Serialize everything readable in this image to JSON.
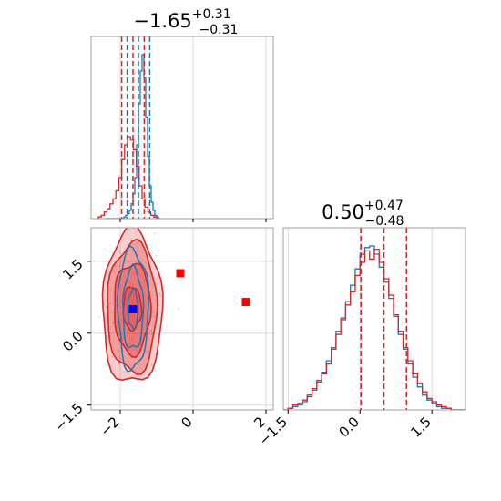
{
  "chart_data": [
    {
      "type": "histogram",
      "panel": "top-left",
      "title": {
        "main": "−1.65",
        "sup": "+0.31",
        "sub": "−0.31"
      },
      "xlim": [
        -2.8,
        2.2
      ],
      "xticks": [
        -2,
        0,
        2
      ],
      "quantile_lines": [
        -1.96,
        -1.65,
        -1.34
      ],
      "series": [
        {
          "color": "#1f77b4",
          "bin_edges_start": -2.4,
          "bin_width": 0.05,
          "counts": [
            0,
            0,
            0,
            0,
            0,
            0,
            0,
            0,
            0,
            0,
            0.01,
            0.02,
            0.03,
            0.05,
            0.09,
            0.15,
            0.25,
            0.45,
            0.7,
            0.9,
            1.0,
            0.86,
            0.62,
            0.38,
            0.2,
            0.1,
            0.05,
            0.02,
            0.01,
            0
          ]
        },
        {
          "color": "#d62728",
          "bin_edges_start": -2.6,
          "bin_width": 0.08,
          "counts": [
            0.01,
            0.02,
            0.04,
            0.06,
            0.09,
            0.12,
            0.17,
            0.25,
            0.36,
            0.45,
            0.5,
            0.48,
            0.42,
            0.32,
            0.2,
            0.12,
            0.07,
            0.04,
            0.02,
            0.01
          ]
        }
      ]
    },
    {
      "type": "contour",
      "panel": "bottom-left",
      "xlim": [
        -2.8,
        2.2
      ],
      "ylim": [
        -1.6,
        2.2
      ],
      "xticks": [
        -2,
        0,
        2
      ],
      "yticks": [
        -1.5,
        0.0,
        1.5
      ],
      "contours": [
        {
          "color": "#d62728",
          "center": [
            -1.67,
            0.52
          ],
          "levels_rx": [
            0.25,
            0.5,
            0.68,
            0.82
          ],
          "levels_ry": [
            0.45,
            0.95,
            1.35,
            1.6
          ],
          "fill": "#e34a4a"
        },
        {
          "color": "#1f77b4",
          "center": [
            -1.65,
            0.5
          ],
          "levels_rx": [
            0.14,
            0.28,
            0.42
          ],
          "levels_ry": [
            0.4,
            0.85,
            1.25
          ],
          "fill": "none"
        }
      ],
      "points": [
        {
          "x": -1.65,
          "y": 0.5,
          "color": "#0000ff",
          "marker": "square"
        },
        {
          "x": -0.35,
          "y": 1.25,
          "color": "#ff0000",
          "marker": "square"
        },
        {
          "x": 1.45,
          "y": 0.65,
          "color": "#ff0000",
          "marker": "square"
        }
      ]
    },
    {
      "type": "histogram",
      "panel": "bottom-right",
      "title": {
        "main": "0.50",
        "sup": "+0.47",
        "sub": "−0.48"
      },
      "xlim": [
        -1.6,
        2.2
      ],
      "xticks": [
        -1.5,
        0.0,
        1.5
      ],
      "quantile_lines": [
        0.02,
        0.5,
        0.97
      ],
      "series": [
        {
          "color": "#1f77b4",
          "bin_edges_start": -1.6,
          "bin_width": 0.1,
          "counts": [
            0.0,
            0.01,
            0.02,
            0.03,
            0.05,
            0.08,
            0.12,
            0.17,
            0.23,
            0.3,
            0.38,
            0.48,
            0.56,
            0.66,
            0.76,
            0.86,
            0.95,
            0.99,
            1.0,
            0.95,
            0.87,
            0.78,
            0.68,
            0.57,
            0.46,
            0.37,
            0.28,
            0.2,
            0.14,
            0.09,
            0.06,
            0.04,
            0.02,
            0.01,
            0.01,
            0.0,
            0.0,
            0.0
          ]
        },
        {
          "color": "#d62728",
          "bin_edges_start": -1.6,
          "bin_width": 0.1,
          "counts": [
            0.0,
            0.01,
            0.03,
            0.04,
            0.06,
            0.09,
            0.13,
            0.18,
            0.22,
            0.28,
            0.37,
            0.46,
            0.55,
            0.64,
            0.72,
            0.82,
            0.9,
            0.97,
            0.92,
            0.98,
            0.9,
            0.8,
            0.7,
            0.58,
            0.48,
            0.38,
            0.3,
            0.22,
            0.16,
            0.11,
            0.07,
            0.05,
            0.03,
            0.02,
            0.01,
            0.0,
            0.0,
            0.0
          ]
        }
      ]
    }
  ]
}
